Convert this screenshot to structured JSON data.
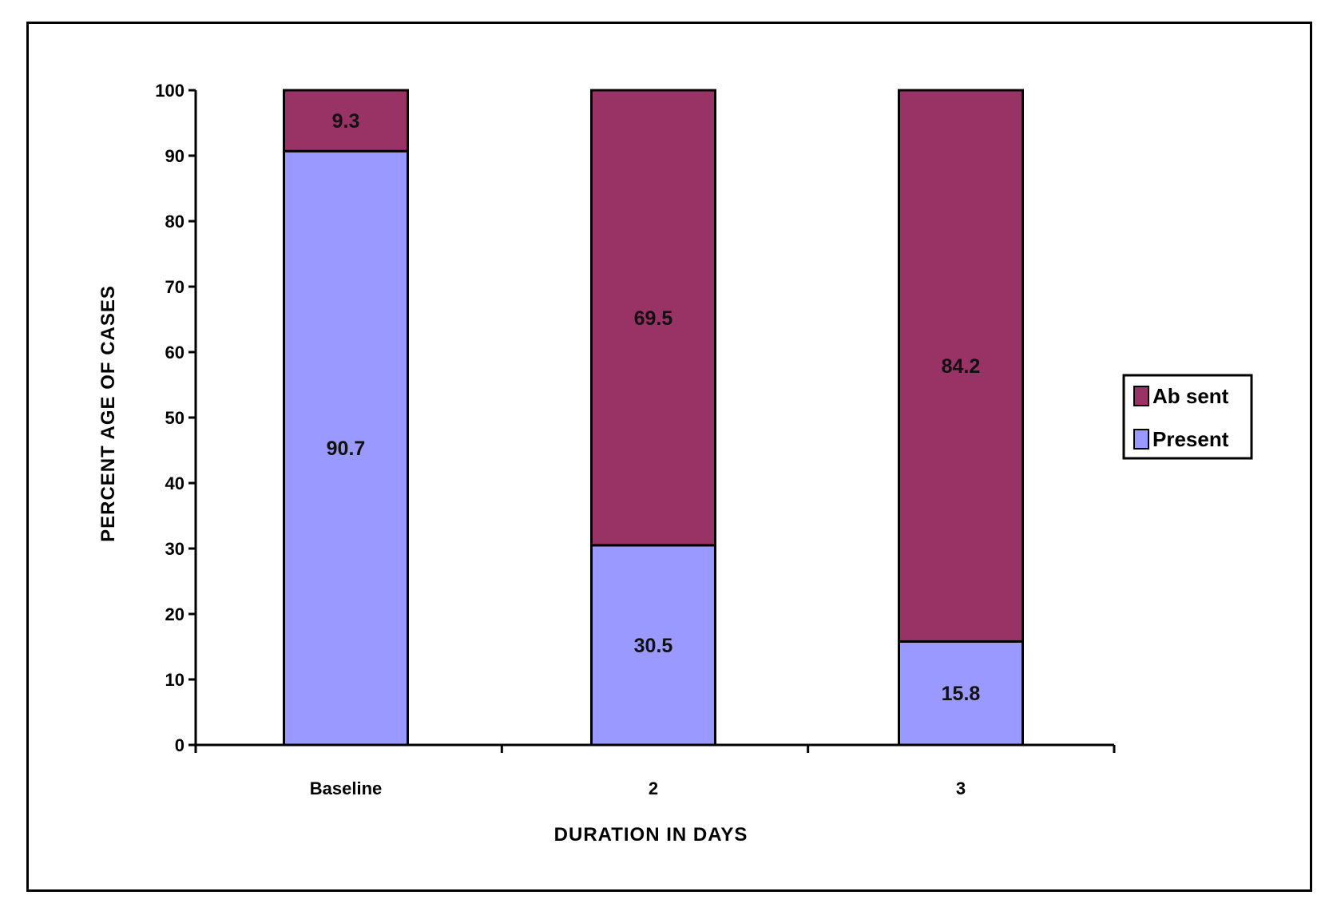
{
  "chart_data": {
    "type": "bar",
    "stacked": true,
    "categories": [
      "Baseline",
      "2",
      "3"
    ],
    "series": [
      {
        "name": "Present",
        "values": [
          90.7,
          30.5,
          15.8
        ],
        "color": "#9999FF"
      },
      {
        "name": "Absent",
        "values": [
          9.3,
          69.5,
          84.2
        ],
        "color": "#993366"
      }
    ],
    "data_labels": {
      "Present": [
        "90.7",
        "30.5",
        "15.8"
      ],
      "Absent": [
        "9.3",
        "69.5",
        "84.2"
      ]
    },
    "xlabel": "DURATION IN DAYS",
    "ylabel": "PERCENT AGE OF CASES",
    "ylim": [
      0,
      100
    ],
    "yticks": [
      "0",
      "10",
      "20",
      "30",
      "40",
      "50",
      "60",
      "70",
      "80",
      "90",
      "100"
    ],
    "grid": false,
    "legend": {
      "placement": "right",
      "entries": [
        "Ab sent",
        "Present"
      ]
    }
  }
}
